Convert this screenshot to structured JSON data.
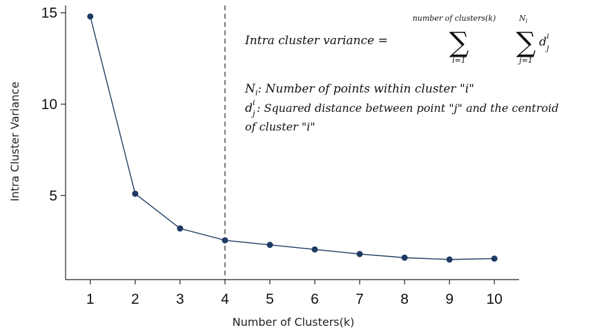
{
  "chart_data": {
    "type": "line",
    "xlabel": "Number of Clusters(k)",
    "ylabel": "Intra Cluster Variance",
    "x": [
      1,
      2,
      3,
      4,
      5,
      6,
      7,
      8,
      9,
      10
    ],
    "series": [
      {
        "values": [
          14.8,
          5.1,
          3.2,
          2.55,
          2.3,
          2.05,
          1.8,
          1.6,
          1.5,
          1.55
        ]
      }
    ],
    "xlim": [
      0.45,
      10.55
    ],
    "ylim": [
      0.4,
      15.4
    ],
    "yticks": [
      5,
      10,
      15
    ],
    "xticks": [
      1,
      2,
      3,
      4,
      5,
      6,
      7,
      8,
      9,
      10
    ],
    "vline_x": 4,
    "grid": false,
    "colors": {
      "series": "#1f3b63",
      "axis": "#222222"
    },
    "annotations": {
      "equation_lhs": "Intra cluster variance =",
      "outer_sum_upper": "number of clusters(k)",
      "outer_sum_lower": "i=1",
      "inner_sum_upper": "N",
      "inner_sum_upper_sub": "i",
      "inner_sum_lower": "j=1",
      "summand": "d",
      "summand_sup": "i",
      "summand_sub": "j",
      "def1_symbol": "N",
      "def1_sub": "i",
      "def1_text": ": Number of points within cluster \"i\"",
      "def2_symbol": "d",
      "def2_sup": "i",
      "def2_sub": "j",
      "def2_text": ": Squared distance between point \"j\" and the centroid",
      "def2_text_cont": "of cluster \"i\"",
      "sigma": "∑"
    }
  }
}
